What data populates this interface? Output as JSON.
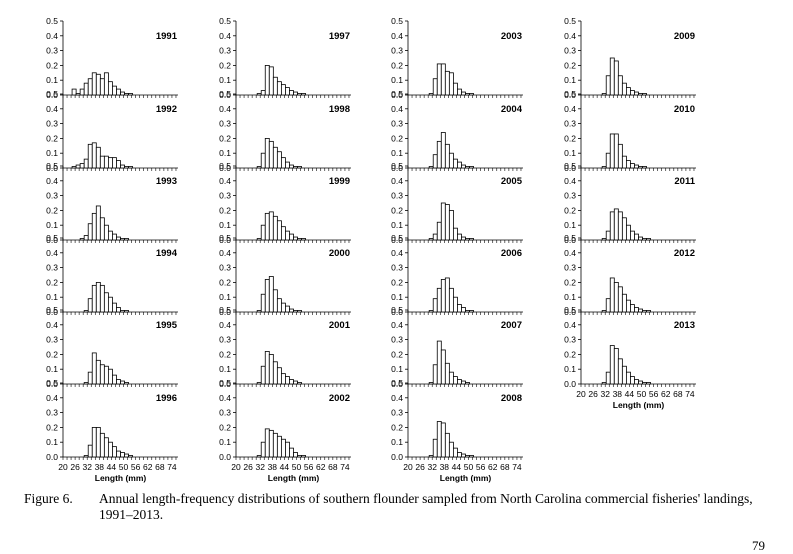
{
  "caption": {
    "label": "Figure 6.",
    "text": "Annual length-frequency distributions of southern flounder sampled from North Carolina commercial fisheries' landings, 1991–2013."
  },
  "page_number": "79",
  "chart_data": {
    "type": "bar",
    "layout_note": "small multiples, one histogram per year",
    "x_tick_labels": [
      "20",
      "26",
      "32",
      "38",
      "44",
      "50",
      "56",
      "62",
      "68",
      "74"
    ],
    "xlabel": "Length (mm)",
    "y_tick_labels": [
      "0.0",
      "0.1",
      "0.2",
      "0.3",
      "0.4",
      "0.5"
    ],
    "ylim": [
      0,
      0.5
    ],
    "xlim": [
      20,
      77
    ],
    "bin_width": 2,
    "bin_starts": [
      20,
      22,
      24,
      26,
      28,
      30,
      32,
      34,
      36,
      38,
      40,
      42,
      44,
      46,
      48,
      50,
      52,
      54,
      56,
      58,
      60,
      62,
      64,
      66,
      68,
      70,
      72,
      74
    ],
    "columns": [
      {
        "panels": [
          {
            "year": "1991",
            "values": [
              0,
              0,
              0.04,
              0.01,
              0.04,
              0.08,
              0.11,
              0.15,
              0.14,
              0.11,
              0.15,
              0.09,
              0.06,
              0.04,
              0.02,
              0.01,
              0.01,
              0,
              0,
              0,
              0,
              0,
              0,
              0,
              0,
              0,
              0,
              0
            ]
          },
          {
            "year": "1992",
            "values": [
              0,
              0,
              0.01,
              0.02,
              0.03,
              0.06,
              0.16,
              0.17,
              0.14,
              0.08,
              0.08,
              0.07,
              0.07,
              0.05,
              0.02,
              0.01,
              0.01,
              0,
              0,
              0,
              0,
              0,
              0,
              0,
              0,
              0,
              0,
              0
            ]
          },
          {
            "year": "1993",
            "values": [
              0,
              0,
              0,
              0,
              0.01,
              0.03,
              0.11,
              0.18,
              0.23,
              0.15,
              0.1,
              0.06,
              0.04,
              0.02,
              0.01,
              0.01,
              0,
              0,
              0,
              0,
              0,
              0,
              0,
              0,
              0,
              0,
              0,
              0
            ]
          },
          {
            "year": "1994",
            "values": [
              0,
              0,
              0,
              0,
              0,
              0.01,
              0.09,
              0.18,
              0.2,
              0.18,
              0.13,
              0.1,
              0.06,
              0.03,
              0.01,
              0.01,
              0,
              0,
              0,
              0,
              0,
              0,
              0,
              0,
              0,
              0,
              0,
              0
            ]
          },
          {
            "year": "1995",
            "values": [
              0,
              0,
              0,
              0,
              0,
              0.01,
              0.08,
              0.21,
              0.16,
              0.13,
              0.12,
              0.1,
              0.06,
              0.03,
              0.02,
              0.01,
              0,
              0,
              0,
              0,
              0,
              0,
              0,
              0,
              0,
              0,
              0,
              0
            ]
          },
          {
            "year": "1996",
            "values": [
              0,
              0,
              0,
              0,
              0,
              0.01,
              0.08,
              0.2,
              0.2,
              0.16,
              0.13,
              0.1,
              0.07,
              0.04,
              0.03,
              0.02,
              0.01,
              0,
              0,
              0,
              0,
              0,
              0,
              0,
              0,
              0,
              0,
              0
            ]
          }
        ]
      },
      {
        "panels": [
          {
            "year": "1997",
            "values": [
              0,
              0,
              0,
              0,
              0,
              0.01,
              0.03,
              0.2,
              0.19,
              0.12,
              0.09,
              0.07,
              0.05,
              0.03,
              0.02,
              0.01,
              0.01,
              0,
              0,
              0,
              0,
              0,
              0,
              0,
              0,
              0,
              0,
              0
            ]
          },
          {
            "year": "1998",
            "values": [
              0,
              0,
              0,
              0,
              0,
              0.01,
              0.1,
              0.2,
              0.18,
              0.14,
              0.11,
              0.07,
              0.04,
              0.02,
              0.01,
              0.01,
              0,
              0,
              0,
              0,
              0,
              0,
              0,
              0,
              0,
              0,
              0,
              0
            ]
          },
          {
            "year": "1999",
            "values": [
              0,
              0,
              0,
              0,
              0,
              0.01,
              0.1,
              0.18,
              0.19,
              0.16,
              0.13,
              0.09,
              0.06,
              0.04,
              0.02,
              0.01,
              0.01,
              0,
              0,
              0,
              0,
              0,
              0,
              0,
              0,
              0,
              0,
              0
            ]
          },
          {
            "year": "2000",
            "values": [
              0,
              0,
              0,
              0,
              0,
              0.01,
              0.12,
              0.22,
              0.24,
              0.15,
              0.09,
              0.06,
              0.04,
              0.02,
              0.01,
              0.01,
              0,
              0,
              0,
              0,
              0,
              0,
              0,
              0,
              0,
              0,
              0,
              0
            ]
          },
          {
            "year": "2001",
            "values": [
              0,
              0,
              0,
              0,
              0,
              0.01,
              0.12,
              0.22,
              0.2,
              0.15,
              0.11,
              0.07,
              0.05,
              0.03,
              0.02,
              0.01,
              0,
              0,
              0,
              0,
              0,
              0,
              0,
              0,
              0,
              0,
              0,
              0
            ]
          },
          {
            "year": "2002",
            "values": [
              0,
              0,
              0,
              0,
              0,
              0.01,
              0.1,
              0.19,
              0.18,
              0.16,
              0.14,
              0.12,
              0.1,
              0.06,
              0.03,
              0.01,
              0.01,
              0,
              0,
              0,
              0,
              0,
              0,
              0,
              0,
              0,
              0,
              0
            ]
          }
        ]
      },
      {
        "panels": [
          {
            "year": "2003",
            "values": [
              0,
              0,
              0,
              0,
              0,
              0.01,
              0.11,
              0.21,
              0.21,
              0.16,
              0.15,
              0.08,
              0.04,
              0.02,
              0.01,
              0.01,
              0,
              0,
              0,
              0,
              0,
              0,
              0,
              0,
              0,
              0,
              0,
              0
            ]
          },
          {
            "year": "2004",
            "values": [
              0,
              0,
              0,
              0,
              0,
              0.01,
              0.09,
              0.18,
              0.24,
              0.16,
              0.1,
              0.06,
              0.04,
              0.02,
              0.01,
              0.01,
              0,
              0,
              0,
              0,
              0,
              0,
              0,
              0,
              0,
              0,
              0,
              0
            ]
          },
          {
            "year": "2005",
            "values": [
              0,
              0,
              0,
              0,
              0,
              0.01,
              0.04,
              0.12,
              0.25,
              0.24,
              0.2,
              0.08,
              0.04,
              0.02,
              0.01,
              0.01,
              0,
              0,
              0,
              0,
              0,
              0,
              0,
              0,
              0,
              0,
              0,
              0
            ]
          },
          {
            "year": "2006",
            "values": [
              0,
              0,
              0,
              0,
              0,
              0.01,
              0.09,
              0.16,
              0.22,
              0.23,
              0.16,
              0.1,
              0.05,
              0.03,
              0.01,
              0.01,
              0,
              0,
              0,
              0,
              0,
              0,
              0,
              0,
              0,
              0,
              0,
              0
            ]
          },
          {
            "year": "2007",
            "values": [
              0,
              0,
              0,
              0,
              0,
              0.01,
              0.13,
              0.29,
              0.23,
              0.14,
              0.08,
              0.05,
              0.03,
              0.02,
              0.01,
              0,
              0,
              0,
              0,
              0,
              0,
              0,
              0,
              0,
              0,
              0,
              0,
              0
            ]
          },
          {
            "year": "2008",
            "values": [
              0,
              0,
              0,
              0,
              0,
              0.01,
              0.12,
              0.24,
              0.23,
              0.16,
              0.1,
              0.06,
              0.03,
              0.02,
              0.01,
              0.01,
              0,
              0,
              0,
              0,
              0,
              0,
              0,
              0,
              0,
              0,
              0,
              0
            ]
          }
        ]
      },
      {
        "panels": [
          {
            "year": "2009",
            "values": [
              0,
              0,
              0,
              0,
              0,
              0.01,
              0.13,
              0.25,
              0.23,
              0.13,
              0.08,
              0.05,
              0.03,
              0.02,
              0.01,
              0.01,
              0,
              0,
              0,
              0,
              0,
              0,
              0,
              0,
              0,
              0,
              0,
              0
            ]
          },
          {
            "year": "2010",
            "values": [
              0,
              0,
              0,
              0,
              0,
              0.01,
              0.1,
              0.23,
              0.23,
              0.16,
              0.08,
              0.05,
              0.03,
              0.02,
              0.01,
              0.01,
              0,
              0,
              0,
              0,
              0,
              0,
              0,
              0,
              0,
              0,
              0,
              0
            ]
          },
          {
            "year": "2011",
            "values": [
              0,
              0,
              0,
              0,
              0,
              0.01,
              0.06,
              0.19,
              0.21,
              0.19,
              0.15,
              0.1,
              0.06,
              0.04,
              0.02,
              0.01,
              0.01,
              0,
              0,
              0,
              0,
              0,
              0,
              0,
              0,
              0,
              0,
              0
            ]
          },
          {
            "year": "2012",
            "values": [
              0,
              0,
              0,
              0,
              0,
              0.01,
              0.09,
              0.23,
              0.2,
              0.17,
              0.12,
              0.08,
              0.05,
              0.03,
              0.02,
              0.01,
              0.01,
              0,
              0,
              0,
              0,
              0,
              0,
              0,
              0,
              0,
              0,
              0
            ]
          },
          {
            "year": "2013",
            "values": [
              0,
              0,
              0,
              0,
              0,
              0.01,
              0.08,
              0.26,
              0.24,
              0.17,
              0.12,
              0.08,
              0.05,
              0.03,
              0.02,
              0.01,
              0.01,
              0,
              0,
              0,
              0,
              0,
              0,
              0,
              0,
              0,
              0,
              0
            ]
          }
        ]
      }
    ]
  }
}
